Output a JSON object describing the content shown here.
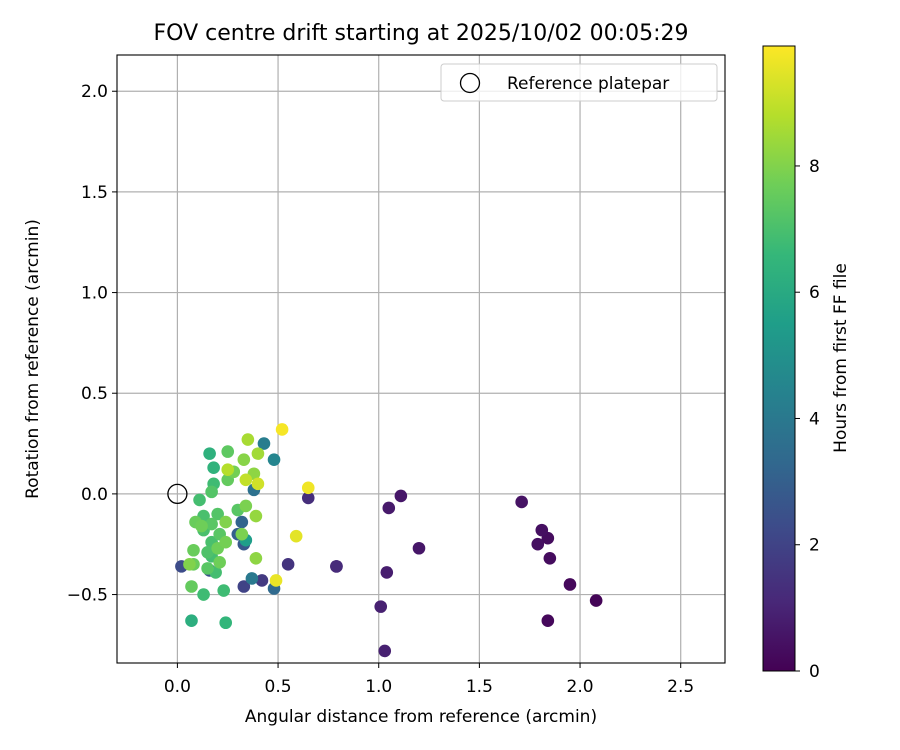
{
  "chart_data": {
    "type": "scatter",
    "title": "FOV centre drift starting at 2025/10/02 00:05:29",
    "xlabel": "Angular distance from reference (arcmin)",
    "ylabel": "Rotation from reference (arcmin)",
    "xlim": [
      -0.3,
      2.72
    ],
    "ylim": [
      -0.84,
      2.18
    ],
    "xticks": [
      0.0,
      0.5,
      1.0,
      1.5,
      2.0,
      2.5
    ],
    "xtick_labels": [
      "0.0",
      "0.5",
      "1.0",
      "1.5",
      "2.0",
      "2.5"
    ],
    "yticks": [
      -0.5,
      0.0,
      0.5,
      1.0,
      1.5,
      2.0
    ],
    "ytick_labels": [
      "−0.5",
      "0.0",
      "0.5",
      "1.0",
      "1.5",
      "2.0"
    ],
    "grid": true,
    "legend": {
      "position": "top-right",
      "label": "Reference platepar"
    },
    "reference_point": {
      "x": 0.0,
      "y": 0.0
    },
    "colorbar": {
      "label": "Hours from first FF file",
      "range": [
        0,
        9.9
      ],
      "ticks": [
        0,
        2,
        4,
        6,
        8
      ],
      "tick_labels": [
        "0",
        "2",
        "4",
        "6",
        "8"
      ],
      "colormap": [
        "#440154",
        "#482878",
        "#3e4989",
        "#31688e",
        "#26828e",
        "#1f9e89",
        "#35b779",
        "#6ece58",
        "#b5de2b",
        "#fde725"
      ]
    },
    "points": [
      {
        "x": 2.08,
        "y": -0.53,
        "h": 0.1
      },
      {
        "x": 1.95,
        "y": -0.45,
        "h": 0.2
      },
      {
        "x": 1.84,
        "y": -0.63,
        "h": 0.2
      },
      {
        "x": 1.85,
        "y": -0.32,
        "h": 0.3
      },
      {
        "x": 1.84,
        "y": -0.22,
        "h": 0.3
      },
      {
        "x": 1.81,
        "y": -0.18,
        "h": 0.4
      },
      {
        "x": 1.79,
        "y": -0.25,
        "h": 0.4
      },
      {
        "x": 1.71,
        "y": -0.04,
        "h": 0.5
      },
      {
        "x": 1.2,
        "y": -0.27,
        "h": 0.6
      },
      {
        "x": 1.11,
        "y": -0.01,
        "h": 0.6
      },
      {
        "x": 1.05,
        "y": -0.07,
        "h": 0.7
      },
      {
        "x": 1.04,
        "y": -0.39,
        "h": 0.8
      },
      {
        "x": 1.01,
        "y": -0.56,
        "h": 0.9
      },
      {
        "x": 1.03,
        "y": -0.78,
        "h": 0.9
      },
      {
        "x": 0.79,
        "y": -0.36,
        "h": 1.0
      },
      {
        "x": 0.79,
        "y": -0.36,
        "h": 1.2
      },
      {
        "x": 0.65,
        "y": -0.02,
        "h": 1.3
      },
      {
        "x": 0.55,
        "y": -0.35,
        "h": 1.5
      },
      {
        "x": 0.42,
        "y": -0.43,
        "h": 1.7
      },
      {
        "x": 0.33,
        "y": -0.46,
        "h": 2.0
      },
      {
        "x": 0.02,
        "y": -0.36,
        "h": 2.3
      },
      {
        "x": 0.16,
        "y": -0.38,
        "h": 2.5
      },
      {
        "x": 0.33,
        "y": -0.25,
        "h": 2.7
      },
      {
        "x": 0.3,
        "y": -0.2,
        "h": 3.0
      },
      {
        "x": 0.32,
        "y": -0.14,
        "h": 3.2
      },
      {
        "x": 0.48,
        "y": -0.47,
        "h": 3.4
      },
      {
        "x": 0.38,
        "y": 0.02,
        "h": 3.7
      },
      {
        "x": 0.37,
        "y": -0.42,
        "h": 4.0
      },
      {
        "x": 0.43,
        "y": 0.25,
        "h": 4.2
      },
      {
        "x": 0.48,
        "y": 0.17,
        "h": 4.5
      },
      {
        "x": 0.34,
        "y": -0.23,
        "h": 5.5
      },
      {
        "x": 0.07,
        "y": -0.63,
        "h": 6.2
      },
      {
        "x": 0.16,
        "y": 0.2,
        "h": 6.3
      },
      {
        "x": 0.24,
        "y": -0.64,
        "h": 6.5
      },
      {
        "x": 0.18,
        "y": 0.13,
        "h": 6.4
      },
      {
        "x": 0.18,
        "y": 0.05,
        "h": 6.8
      },
      {
        "x": 0.13,
        "y": -0.5,
        "h": 6.8
      },
      {
        "x": 0.23,
        "y": -0.48,
        "h": 6.8
      },
      {
        "x": 0.19,
        "y": -0.39,
        "h": 6.9
      },
      {
        "x": 0.17,
        "y": -0.31,
        "h": 6.9
      },
      {
        "x": 0.11,
        "y": -0.03,
        "h": 6.9
      },
      {
        "x": 0.13,
        "y": -0.11,
        "h": 7.0
      },
      {
        "x": 0.13,
        "y": -0.18,
        "h": 7.0
      },
      {
        "x": 0.17,
        "y": -0.24,
        "h": 7.0
      },
      {
        "x": 0.15,
        "y": -0.29,
        "h": 7.1
      },
      {
        "x": 0.17,
        "y": 0.01,
        "h": 7.2
      },
      {
        "x": 0.2,
        "y": -0.1,
        "h": 7.2
      },
      {
        "x": 0.17,
        "y": -0.15,
        "h": 7.3
      },
      {
        "x": 0.21,
        "y": -0.2,
        "h": 7.3
      },
      {
        "x": 0.15,
        "y": -0.37,
        "h": 7.3
      },
      {
        "x": 0.3,
        "y": -0.08,
        "h": 7.3
      },
      {
        "x": 0.25,
        "y": 0.21,
        "h": 7.4
      },
      {
        "x": 0.25,
        "y": 0.07,
        "h": 7.5
      },
      {
        "x": 0.07,
        "y": -0.46,
        "h": 7.5
      },
      {
        "x": 0.08,
        "y": -0.28,
        "h": 7.6
      },
      {
        "x": 0.08,
        "y": -0.35,
        "h": 7.6
      },
      {
        "x": 0.09,
        "y": -0.14,
        "h": 7.6
      },
      {
        "x": 0.12,
        "y": -0.16,
        "h": 7.7
      },
      {
        "x": 0.2,
        "y": -0.27,
        "h": 7.7
      },
      {
        "x": 0.21,
        "y": -0.34,
        "h": 7.7
      },
      {
        "x": 0.24,
        "y": -0.24,
        "h": 7.8
      },
      {
        "x": 0.28,
        "y": 0.11,
        "h": 7.8
      },
      {
        "x": 0.32,
        "y": -0.2,
        "h": 7.9
      },
      {
        "x": 0.34,
        "y": -0.06,
        "h": 7.9
      },
      {
        "x": 0.06,
        "y": -0.35,
        "h": 8.0
      },
      {
        "x": 0.24,
        "y": -0.14,
        "h": 8.0
      },
      {
        "x": 0.33,
        "y": 0.17,
        "h": 8.1
      },
      {
        "x": 0.38,
        "y": 0.1,
        "h": 8.2
      },
      {
        "x": 0.39,
        "y": -0.32,
        "h": 8.2
      },
      {
        "x": 0.39,
        "y": -0.11,
        "h": 8.3
      },
      {
        "x": 0.4,
        "y": 0.2,
        "h": 8.5
      },
      {
        "x": 0.35,
        "y": 0.27,
        "h": 8.6
      },
      {
        "x": 0.25,
        "y": 0.12,
        "h": 8.8
      },
      {
        "x": 0.34,
        "y": 0.07,
        "h": 9.0
      },
      {
        "x": 0.4,
        "y": 0.05,
        "h": 9.2
      },
      {
        "x": 0.59,
        "y": -0.21,
        "h": 9.5
      },
      {
        "x": 0.49,
        "y": -0.43,
        "h": 9.6
      },
      {
        "x": 0.65,
        "y": 0.03,
        "h": 9.7
      },
      {
        "x": 0.52,
        "y": 0.32,
        "h": 9.8
      }
    ]
  }
}
